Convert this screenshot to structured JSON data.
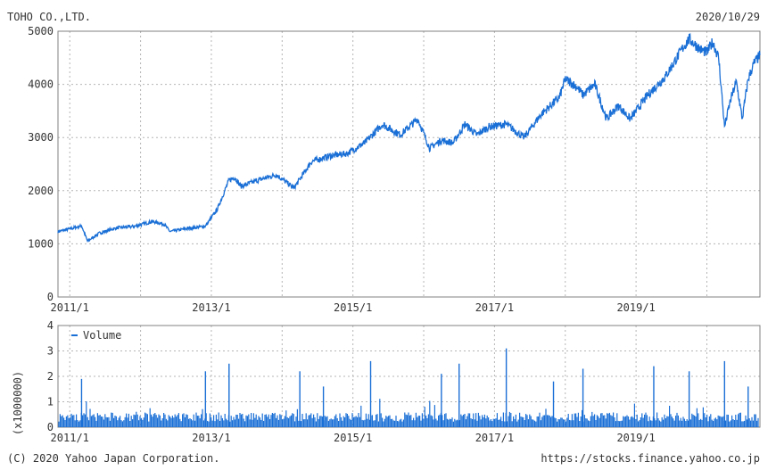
{
  "header": {
    "company": "TOHO CO.,LTD.",
    "date": "2020/10/29"
  },
  "footer": {
    "copyright": "(C) 2020 Yahoo Japan Corporation.",
    "url": "https://stocks.finance.yahoo.co.jp"
  },
  "colors": {
    "series": "#1a6fd6",
    "grid": "#b5b5b5",
    "frame": "#808080",
    "text": "#333333"
  },
  "chart_data": [
    {
      "type": "line",
      "title": "TOHO CO.,LTD.",
      "ylim": [
        0,
        5000
      ],
      "y_ticks": [
        "0",
        "1000",
        "2000",
        "3000",
        "4000",
        "5000"
      ],
      "x_ticks": [
        "2011/1",
        "2013/1",
        "2015/1",
        "2017/1",
        "2019/1"
      ],
      "xlim": [
        "2010-11",
        "2020-10"
      ],
      "grid": true,
      "series": [
        {
          "x": [
            "2010-11",
            "2011-01",
            "2011-03",
            "2011-04",
            "2011-06",
            "2011-09",
            "2011-12",
            "2012-03",
            "2012-05",
            "2012-06",
            "2012-09",
            "2012-12",
            "2013-02",
            "2013-04",
            "2013-05",
            "2013-06",
            "2013-09",
            "2013-12",
            "2014-03",
            "2014-06",
            "2014-09",
            "2014-12",
            "2015-03",
            "2015-06",
            "2015-09",
            "2015-12",
            "2016-02",
            "2016-04",
            "2016-06",
            "2016-08",
            "2016-10",
            "2016-12",
            "2017-03",
            "2017-06",
            "2017-09",
            "2017-12",
            "2018-01",
            "2018-03",
            "2018-04",
            "2018-06",
            "2018-08",
            "2018-10",
            "2018-12",
            "2019-03",
            "2019-06",
            "2019-09",
            "2019-10",
            "2019-12",
            "2020-01",
            "2020-02",
            "2020-03",
            "2020-04",
            "2020-05",
            "2020-06",
            "2020-07",
            "2020-08",
            "2020-09",
            "2020-10"
          ],
          "values": [
            1230,
            1280,
            1340,
            1050,
            1200,
            1300,
            1330,
            1420,
            1370,
            1230,
            1290,
            1330,
            1650,
            2200,
            2250,
            2080,
            2200,
            2300,
            2050,
            2550,
            2650,
            2700,
            2900,
            3250,
            3050,
            3350,
            2800,
            2950,
            2900,
            3250,
            3050,
            3200,
            3250,
            3000,
            3450,
            3750,
            4100,
            3950,
            3800,
            4000,
            3350,
            3600,
            3350,
            3800,
            4150,
            4700,
            4850,
            4650,
            4600,
            4800,
            4500,
            3200,
            3700,
            4050,
            3350,
            4100,
            4400,
            4550
          ]
        }
      ]
    },
    {
      "type": "bar",
      "legend": [
        "Volume"
      ],
      "legend_position": "top-left",
      "ylabel": "(x1000000)",
      "ylim": [
        0,
        4
      ],
      "y_ticks": [
        "0",
        "1",
        "2",
        "3",
        "4"
      ],
      "x_ticks": [
        "2011/1",
        "2013/1",
        "2015/1",
        "2017/1",
        "2019/1"
      ],
      "grid": true,
      "series": [
        {
          "name": "Volume",
          "base_level": 0.4,
          "spikes": [
            {
              "x": "2011-03",
              "value": 1.9
            },
            {
              "x": "2012-12",
              "value": 2.2
            },
            {
              "x": "2013-04",
              "value": 2.5
            },
            {
              "x": "2014-04",
              "value": 2.2
            },
            {
              "x": "2014-08",
              "value": 1.6
            },
            {
              "x": "2015-04",
              "value": 2.6
            },
            {
              "x": "2016-04",
              "value": 2.1
            },
            {
              "x": "2016-07",
              "value": 2.5
            },
            {
              "x": "2017-03",
              "value": 3.1
            },
            {
              "x": "2017-11",
              "value": 1.8
            },
            {
              "x": "2018-04",
              "value": 2.3
            },
            {
              "x": "2019-04",
              "value": 2.4
            },
            {
              "x": "2019-10",
              "value": 2.2
            },
            {
              "x": "2020-04",
              "value": 2.6
            },
            {
              "x": "2020-08",
              "value": 1.6
            }
          ]
        }
      ]
    }
  ]
}
